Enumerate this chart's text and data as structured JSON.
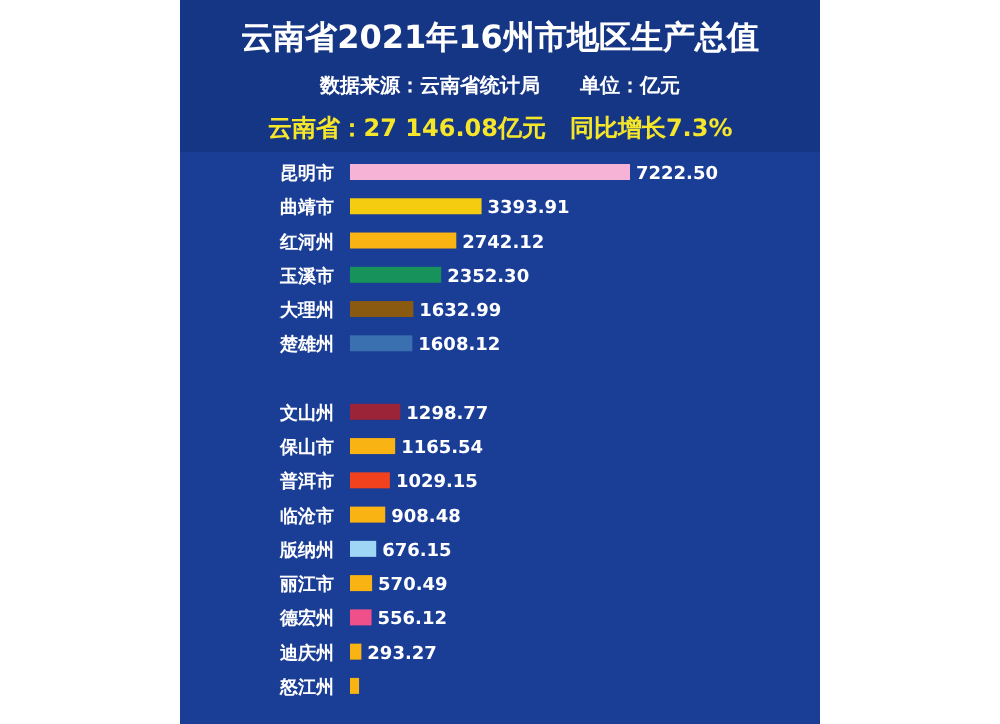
{
  "chart_data": {
    "type": "bar",
    "orientation": "horizontal",
    "title": "云南省2021年16州市地区生产总值",
    "subtitle": "数据来源：云南省统计局　　单位：亿元",
    "annotations": [
      "云南省：27 146.08亿元　同比增长7.3%"
    ],
    "categories": [
      "昆明市",
      "曲靖市",
      "红河州",
      "玉溪市",
      "大理州",
      "楚雄州",
      null,
      "文山州",
      "保山市",
      "普洱市",
      "临沧市",
      "版纳州",
      "丽江市",
      "德宏州",
      "迪庆州",
      "怒江州"
    ],
    "values": [
      7222.5,
      3393.91,
      2742.12,
      2352.3,
      1632.99,
      1608.12,
      null,
      1298.77,
      1165.54,
      1029.15,
      908.48,
      676.15,
      570.49,
      556.12,
      293.27,
      234
    ],
    "value_labels": [
      "7222.50",
      "3393.91",
      "2742.12",
      "2352.30",
      "1632.99",
      "1608.12",
      null,
      "1298.77",
      "1165.54",
      "1029.15",
      "908.48",
      "676.15",
      "570.49",
      "556.12",
      "293.27",
      null
    ],
    "colors": [
      "#f7b3d6",
      "#f5cc0f",
      "#f9b312",
      "#17925a",
      "#8a5a10",
      "#3a6fb0",
      null,
      "#9b2438",
      "#f9b312",
      "#f2411d",
      "#f9b312",
      "#9fd6f5",
      "#f9b312",
      "#f0508a",
      "#f9b312",
      "#f9b312"
    ],
    "xlim": [
      0,
      7222.5
    ],
    "tick_labels": false,
    "grid": false
  }
}
